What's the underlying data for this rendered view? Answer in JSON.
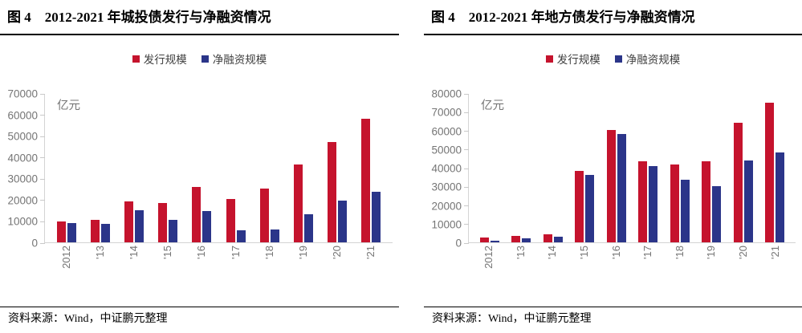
{
  "source_note": "资料来源：Wind，中证鹏元整理",
  "colors": {
    "issuance_red": "#C5132D",
    "net_financing_blue": "#2B3589",
    "axis_line": "#D4D4D4",
    "axis_text": "#757575",
    "legend_text": "#3F3F3F",
    "rule_black": "#000000"
  },
  "chart_data": [
    {
      "type": "bar",
      "title": "图 4　2012-2021 年城投债发行与净融资情况",
      "unit_label": "亿元",
      "grid": false,
      "legend_position": "top-center",
      "categories": [
        "2012",
        "'13",
        "'14",
        "'15",
        "'16",
        "'17",
        "'18",
        "'19",
        "'20",
        "'21"
      ],
      "series": [
        {
          "name": "发行规模",
          "color": "#C5132D",
          "values": [
            9700,
            10500,
            19300,
            18600,
            25900,
            20300,
            25400,
            36500,
            47100,
            57900
          ]
        },
        {
          "name": "净融资规模",
          "color": "#2B3589",
          "values": [
            8900,
            8600,
            15200,
            10400,
            14800,
            5500,
            6000,
            13000,
            19700,
            23800
          ]
        }
      ],
      "ylim": [
        0,
        70000
      ],
      "ytick_step": 10000
    },
    {
      "type": "bar",
      "title": "图 4　2012-2021 年地方债发行与净融资情况",
      "unit_label": "亿元",
      "grid": false,
      "legend_position": "top-center",
      "categories": [
        "2012",
        "'13",
        "'14",
        "'15",
        "'16",
        "'17",
        "'18",
        "'19",
        "'20",
        "'21"
      ],
      "series": [
        {
          "name": "发行规模",
          "color": "#C5132D",
          "values": [
            2500,
            3500,
            4200,
            38300,
            60400,
            43500,
            41600,
            43500,
            64300,
            74800
          ]
        },
        {
          "name": "净融资规模",
          "color": "#2B3589",
          "values": [
            700,
            2200,
            3100,
            36300,
            58100,
            41000,
            33400,
            30300,
            43700,
            48300
          ]
        }
      ],
      "ylim": [
        0,
        80000
      ],
      "ytick_step": 10000
    }
  ]
}
